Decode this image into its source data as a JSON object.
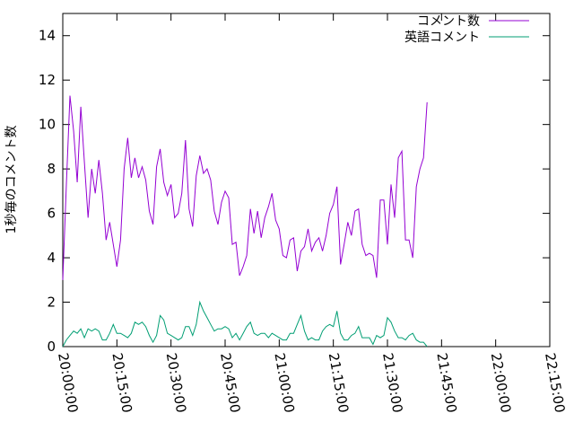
{
  "chart_data": {
    "type": "line",
    "title": "",
    "xlabel": "",
    "ylabel": "1秒毎のコメント数",
    "xlim": [
      "20:00:00",
      "22:15:00"
    ],
    "ylim": [
      0,
      15
    ],
    "x_ticks": [
      "20:00:00",
      "20:15:00",
      "20:30:00",
      "20:45:00",
      "21:00:00",
      "21:15:00",
      "21:30:00",
      "21:45:00",
      "22:00:00",
      "22:15:00"
    ],
    "y_ticks": [
      "0",
      "2",
      "4",
      "6",
      "8",
      "10",
      "12",
      "14"
    ],
    "legend_position": "top-right",
    "sample_interval": "1 min",
    "series": [
      {
        "name": "コメント数",
        "color": "#9400d3",
        "start": "20:00:00",
        "values": [
          3.0,
          7.3,
          11.3,
          9.7,
          7.4,
          10.8,
          8.3,
          5.8,
          8.0,
          6.9,
          8.4,
          6.9,
          4.8,
          5.6,
          4.6,
          3.6,
          4.8,
          8.0,
          9.4,
          7.6,
          8.5,
          7.6,
          8.1,
          7.5,
          6.1,
          5.5,
          8.1,
          8.9,
          7.4,
          6.8,
          7.3,
          5.8,
          6.0,
          6.9,
          9.3,
          6.2,
          5.4,
          7.7,
          8.6,
          7.8,
          8.0,
          7.5,
          6.1,
          5.5,
          6.5,
          7.0,
          6.7,
          4.6,
          4.7,
          3.2,
          3.6,
          4.1,
          6.2,
          5.1,
          6.1,
          4.9,
          5.8,
          6.3,
          6.9,
          5.7,
          5.3,
          4.1,
          4.0,
          4.8,
          4.9,
          3.4,
          4.3,
          4.5,
          5.3,
          4.3,
          4.7,
          4.9,
          4.3,
          5.0,
          6.0,
          6.4,
          7.2,
          3.7,
          4.6,
          5.6,
          5.0,
          6.1,
          6.2,
          4.6,
          4.1,
          4.2,
          4.1,
          3.1,
          6.6,
          6.6,
          4.6,
          7.3,
          5.8,
          8.5,
          8.8,
          4.8,
          4.8,
          4.0,
          7.2,
          8.0,
          8.5,
          11.0
        ]
      },
      {
        "name": "英語コメント",
        "color": "#009e73",
        "start": "20:00:00",
        "values": [
          0.0,
          0.3,
          0.5,
          0.7,
          0.6,
          0.8,
          0.4,
          0.8,
          0.7,
          0.8,
          0.7,
          0.3,
          0.3,
          0.6,
          1.0,
          0.6,
          0.6,
          0.5,
          0.4,
          0.6,
          1.1,
          1.0,
          1.1,
          0.9,
          0.5,
          0.2,
          0.5,
          1.4,
          1.2,
          0.6,
          0.5,
          0.4,
          0.3,
          0.4,
          0.9,
          0.9,
          0.5,
          1.0,
          2.0,
          1.6,
          1.3,
          1.0,
          0.7,
          0.8,
          0.8,
          0.9,
          0.8,
          0.4,
          0.6,
          0.3,
          0.6,
          0.9,
          1.1,
          0.6,
          0.5,
          0.6,
          0.6,
          0.4,
          0.6,
          0.5,
          0.4,
          0.3,
          0.3,
          0.6,
          0.6,
          1.0,
          1.4,
          0.7,
          0.3,
          0.4,
          0.3,
          0.3,
          0.7,
          0.9,
          1.0,
          0.9,
          1.6,
          0.6,
          0.3,
          0.3,
          0.5,
          0.6,
          0.9,
          0.4,
          0.4,
          0.4,
          0.1,
          0.5,
          0.4,
          0.5,
          1.3,
          1.1,
          0.7,
          0.4,
          0.4,
          0.3,
          0.5,
          0.6,
          0.3,
          0.2,
          0.2,
          0.0
        ]
      }
    ]
  }
}
